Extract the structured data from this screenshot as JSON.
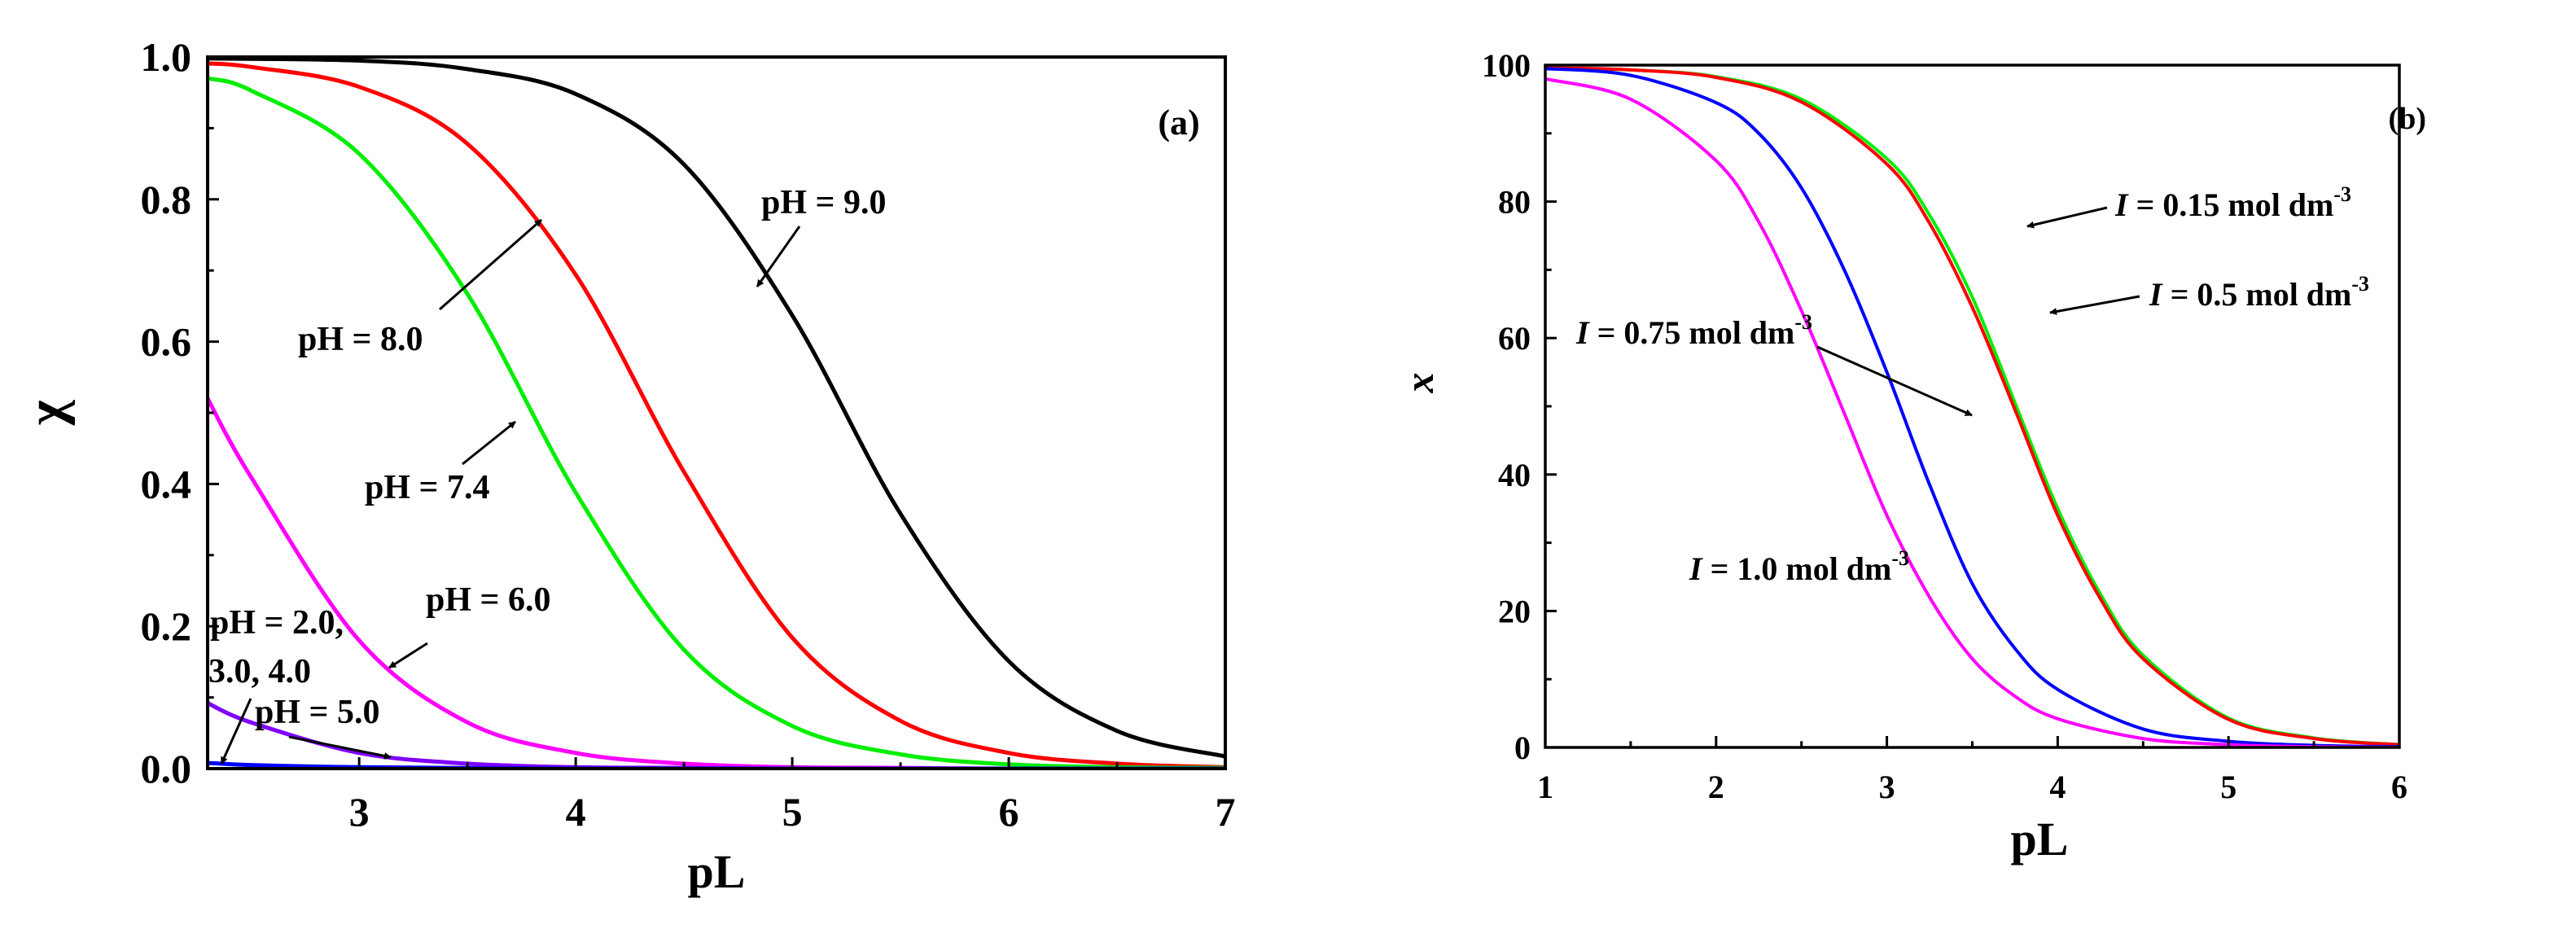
{
  "chart_data": [
    {
      "type": "line",
      "panel_label": "(a)",
      "xlabel": "pL",
      "ylabel": "χ",
      "xlim": [
        2.3,
        7
      ],
      "ylim": [
        0,
        1.0
      ],
      "x_ticks": [
        3,
        4,
        5,
        6,
        7
      ],
      "y_ticks": [
        0.0,
        0.2,
        0.4,
        0.6,
        0.8,
        1.0
      ],
      "x_tick_labels": [
        "3",
        "4",
        "5",
        "6",
        "7"
      ],
      "y_tick_labels": [
        "0.0",
        "0.2",
        "0.4",
        "0.6",
        "0.8",
        "1.0"
      ],
      "grid": false,
      "series": [
        {
          "name": "pH = 9.0",
          "color": "#000000",
          "x": [
            2.3,
            3.0,
            3.5,
            4.0,
            4.5,
            5.0,
            5.5,
            6.0,
            6.5,
            7.0
          ],
          "values": [
            0.998,
            0.995,
            0.983,
            0.948,
            0.849,
            0.637,
            0.358,
            0.151,
            0.053,
            0.017
          ]
        },
        {
          "name": "pH = 8.0",
          "color": "#ff0000",
          "x": [
            2.3,
            2.5,
            3.0,
            3.5,
            4.0,
            4.5,
            5.0,
            5.5,
            6.0,
            6.5,
            7.0
          ],
          "values": [
            0.991,
            0.986,
            0.958,
            0.878,
            0.694,
            0.417,
            0.184,
            0.067,
            0.022,
            0.007,
            0.002
          ]
        },
        {
          "name": "pH = 7.4",
          "color": "#00ee00",
          "x": [
            2.3,
            2.5,
            3.0,
            3.5,
            4.0,
            4.5,
            5.0,
            5.5,
            6.0,
            6.5,
            7.0
          ],
          "values": [
            0.97,
            0.953,
            0.864,
            0.667,
            0.388,
            0.167,
            0.06,
            0.02,
            0.006,
            0.002,
            0.001
          ]
        },
        {
          "name": "pH = 6.0",
          "color": "#ff00ff",
          "x": [
            2.3,
            2.5,
            3.0,
            3.5,
            4.0,
            4.5,
            5.0,
            5.5,
            6.0,
            7.0
          ],
          "values": [
            0.52,
            0.41,
            0.18,
            0.065,
            0.022,
            0.007,
            0.002,
            0.001,
            0.0,
            0.0
          ]
        },
        {
          "name": "pH = 5.0",
          "color": "#7f00ff",
          "x": [
            2.3,
            2.5,
            3.0,
            3.5,
            4.0,
            4.5,
            5.0,
            5.5,
            6.0,
            7.0
          ],
          "values": [
            0.092,
            0.065,
            0.022,
            0.007,
            0.002,
            0.001,
            0.0,
            0.0,
            0.0,
            0.0
          ]
        },
        {
          "name": "pH = 2.0, 3.0, 4.0",
          "color": "#0000ff",
          "x": [
            2.3,
            2.5,
            3.0,
            4.0,
            5.0,
            6.0,
            7.0
          ],
          "values": [
            0.008,
            0.005,
            0.002,
            0.0,
            0.0,
            0.0,
            0.0
          ]
        }
      ],
      "annotations": [
        {
          "text": "pH = 9.0",
          "arrow_to": [
            4.85,
            0.69
          ]
        },
        {
          "text": "pH = 8.0",
          "arrow_to": [
            4.05,
            0.775
          ]
        },
        {
          "text": "pH = 7.4",
          "arrow_to": [
            3.75,
            0.49
          ]
        },
        {
          "text": "pH = 6.0",
          "arrow_to": [
            3.05,
            0.14
          ]
        },
        {
          "text": "pH = 5.0",
          "arrow_to": [
            3.15,
            0.015
          ]
        },
        {
          "text": "pH = 2.0,",
          "text2": "3.0, 4.0",
          "arrow_to": [
            2.35,
            0.005
          ]
        }
      ]
    },
    {
      "type": "line",
      "panel_label": "(b)",
      "xlabel": "pL",
      "ylabel": "x",
      "xlim": [
        1,
        6
      ],
      "ylim": [
        0,
        100
      ],
      "x_ticks": [
        1,
        2,
        3,
        4,
        5,
        6
      ],
      "y_ticks": [
        0,
        20,
        40,
        60,
        80,
        100
      ],
      "x_tick_labels": [
        "1",
        "2",
        "3",
        "4",
        "5",
        "6"
      ],
      "y_tick_labels": [
        "0",
        "20",
        "40",
        "60",
        "80",
        "100"
      ],
      "grid": false,
      "series": [
        {
          "name": "I = 0.15 mol dm-3",
          "color": "#00ee00",
          "x": [
            1.0,
            1.5,
            2.0,
            2.5,
            3.0,
            3.25,
            3.5,
            3.75,
            4.0,
            4.25,
            4.5,
            5.0,
            5.5,
            6.0
          ],
          "values": [
            99.6,
            99.3,
            98.3,
            95.0,
            86.3,
            78.0,
            66.0,
            50.5,
            35.0,
            22.5,
            13.5,
            4.3,
            1.4,
            0.4
          ]
        },
        {
          "name": "I = 0.5 mol dm-3",
          "color": "#ff0000",
          "x": [
            1.0,
            1.5,
            2.0,
            2.5,
            3.0,
            3.25,
            3.5,
            3.75,
            4.0,
            4.25,
            4.5,
            5.0,
            5.5,
            6.0
          ],
          "values": [
            99.6,
            99.3,
            98.2,
            94.6,
            85.5,
            76.8,
            64.5,
            49.5,
            34.0,
            21.8,
            13.0,
            4.1,
            1.3,
            0.4
          ]
        },
        {
          "name": "I = 0.75 mol dm-3",
          "color": "#0000ff",
          "x": [
            1.0,
            1.5,
            2.0,
            2.25,
            2.5,
            2.75,
            3.0,
            3.25,
            3.5,
            3.75,
            4.0,
            4.5,
            5.0,
            5.5,
            6.0
          ],
          "values": [
            99.5,
            98.5,
            94.5,
            90.0,
            82.0,
            70.0,
            55.0,
            38.5,
            24.0,
            14.5,
            8.5,
            2.7,
            0.9,
            0.3,
            0.1
          ]
        },
        {
          "name": "I = 1.0 mol dm-3",
          "color": "#ff00ff",
          "x": [
            1.0,
            1.5,
            2.0,
            2.25,
            2.5,
            2.75,
            3.0,
            3.25,
            3.5,
            3.75,
            4.0,
            4.5,
            5.0,
            5.5,
            6.0
          ],
          "values": [
            98.0,
            95.0,
            86.0,
            77.0,
            64.0,
            49.0,
            34.0,
            22.0,
            13.0,
            7.5,
            4.2,
            1.3,
            0.4,
            0.1,
            0.0
          ]
        }
      ],
      "annotations": [
        {
          "text_italic": "I",
          "text": " = 0.15 mol dm",
          "sup": "-3",
          "arrow_to": [
            3.6,
            75
          ]
        },
        {
          "text_italic": "I",
          "text": " = 0.5 mol dm",
          "sup": "-3",
          "arrow_to": [
            3.65,
            63
          ]
        },
        {
          "text_italic": "I",
          "text": " = 0.75 mol dm",
          "sup": "-3",
          "arrow_to": [
            3.2,
            49
          ]
        },
        {
          "text_italic": "I",
          "text": " = 1.0 mol dm",
          "sup": "-3",
          "arrow_to": null
        }
      ]
    }
  ]
}
